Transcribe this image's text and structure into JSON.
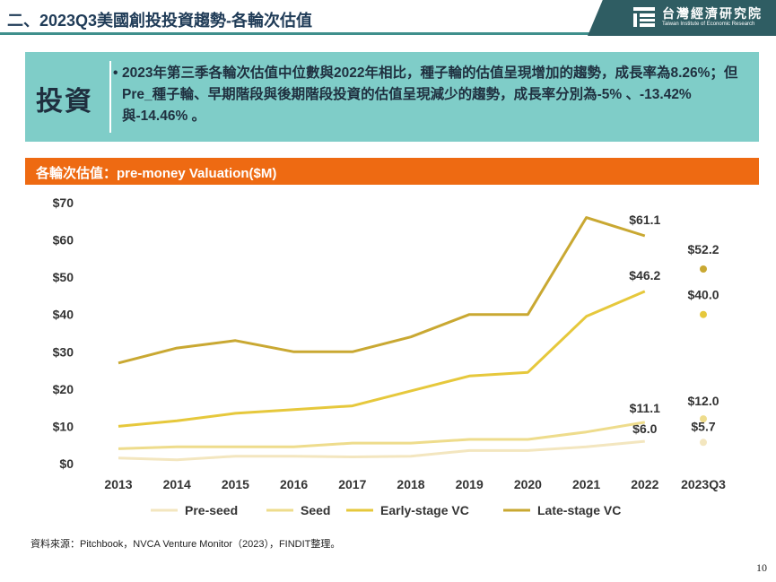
{
  "header": {
    "title": "二、2023Q3美國創投投資趨勢-各輪次估值",
    "logo_cn": "台灣經濟研究院",
    "logo_en": "Taiwan Institute of Economic Research"
  },
  "summary": {
    "label": "投資",
    "text": "2023年第三季各輪次估值中位數與2022年相比，種子輪的估值呈現增加的趨勢，成長率為8.26%；但Pre_種子輪、早期階段與後期階段投資的估值呈現減少的趨勢，成長率分別為-5% 、-13.42%與-14.46% 。"
  },
  "chart_banner": "各輪次估值：pre-money Valuation($M)",
  "chart_data": {
    "type": "line",
    "x": [
      "2013",
      "2014",
      "2015",
      "2016",
      "2017",
      "2018",
      "2019",
      "2020",
      "2021",
      "2022",
      "2023Q3"
    ],
    "ylim": [
      0,
      70
    ],
    "yticks": [
      0,
      10,
      20,
      30,
      40,
      50,
      60,
      70
    ],
    "ytick_labels": [
      "$0",
      "$10",
      "$20",
      "$30",
      "$40",
      "$50",
      "$60",
      "$70"
    ],
    "series": [
      {
        "name": "Pre-seed",
        "color": "#f3e6bf",
        "values": [
          1.5,
          1.0,
          2.0,
          2.0,
          1.8,
          2.0,
          3.5,
          3.5,
          4.5,
          6.0,
          5.7
        ],
        "labels": {
          "2022": "$6.0",
          "2023Q3": "$5.7"
        }
      },
      {
        "name": "Seed",
        "color": "#eedc8c",
        "values": [
          4.0,
          4.5,
          4.5,
          4.5,
          5.5,
          5.5,
          6.5,
          6.5,
          8.5,
          11.1,
          12.0
        ],
        "labels": {
          "2022": "$11.1",
          "2023Q3": "$12.0"
        }
      },
      {
        "name": "Early-stage VC",
        "color": "#e6c83c",
        "values": [
          10.0,
          11.5,
          13.5,
          14.5,
          15.5,
          19.5,
          23.5,
          24.5,
          39.5,
          46.2,
          40.0
        ],
        "labels": {
          "2022": "$46.2",
          "2023Q3": "$40.0"
        }
      },
      {
        "name": "Late-stage VC",
        "color": "#c9a832",
        "values": [
          27.0,
          31.0,
          33.0,
          30.0,
          30.0,
          34.0,
          40.0,
          40.0,
          66.0,
          61.1,
          52.2
        ],
        "labels": {
          "2022": "$61.1",
          "2023Q3": "$52.2"
        }
      }
    ],
    "legend_position": "bottom",
    "grid": false
  },
  "source": "資料來源：Pitchbook，NVCA Venture Monitor（2023），FINDIT整理。",
  "page_number": "10"
}
